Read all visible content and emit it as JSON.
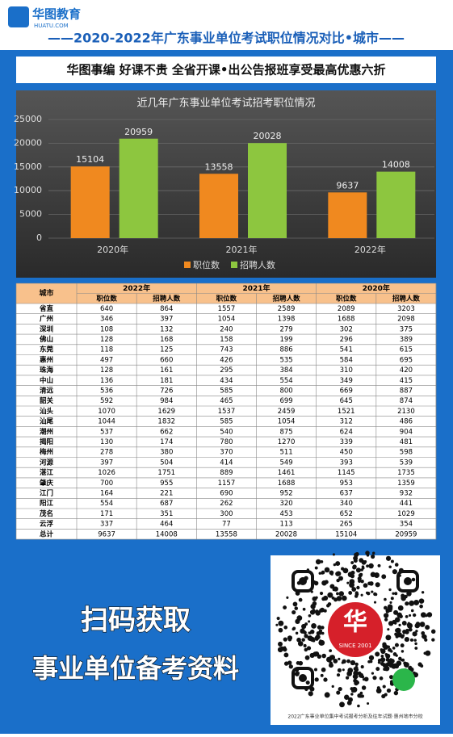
{
  "header": {
    "logo_text": "华图教育",
    "logo_sub": "HUATU.COM",
    "title": "——2020-2022年广东事业单位考试职位情况对比•城市——",
    "banner": "华图事编 好课不贵 全省开课•出公告报班享受最高优惠六折"
  },
  "chart_data": {
    "type": "bar",
    "title": "近几年广东事业单位考试招考职位情况",
    "categories": [
      "2020年",
      "2021年",
      "2022年"
    ],
    "series": [
      {
        "name": "职位数",
        "color": "#f0891f",
        "values": [
          15104,
          13558,
          9637
        ]
      },
      {
        "name": "招聘人数",
        "color": "#8dc63f",
        "values": [
          20959,
          20028,
          14008
        ]
      }
    ],
    "ylim": [
      0,
      25000
    ],
    "yticks": [
      0,
      5000,
      10000,
      15000,
      20000,
      25000
    ],
    "grid": true
  },
  "table": {
    "city_header": "城市",
    "years": [
      "2022年",
      "2021年",
      "2020年"
    ],
    "subheaders": [
      "职位数",
      "招聘人数"
    ],
    "rows": [
      [
        "省直",
        640,
        864,
        1557,
        2589,
        2089,
        3203
      ],
      [
        "广州",
        346,
        397,
        1054,
        1398,
        1688,
        2098
      ],
      [
        "深圳",
        108,
        132,
        240,
        279,
        302,
        375
      ],
      [
        "佛山",
        128,
        168,
        158,
        199,
        296,
        389
      ],
      [
        "东莞",
        118,
        125,
        743,
        886,
        541,
        615
      ],
      [
        "惠州",
        497,
        660,
        426,
        535,
        584,
        695
      ],
      [
        "珠海",
        128,
        161,
        295,
        384,
        310,
        420
      ],
      [
        "中山",
        136,
        181,
        434,
        554,
        349,
        415
      ],
      [
        "清远",
        536,
        726,
        585,
        800,
        669,
        887
      ],
      [
        "韶关",
        592,
        984,
        465,
        699,
        645,
        874
      ],
      [
        "汕头",
        1070,
        1629,
        1537,
        2459,
        1521,
        2130
      ],
      [
        "汕尾",
        1044,
        1832,
        585,
        1054,
        312,
        486
      ],
      [
        "潮州",
        537,
        662,
        540,
        875,
        624,
        904
      ],
      [
        "揭阳",
        130,
        174,
        780,
        1270,
        339,
        481
      ],
      [
        "梅州",
        278,
        380,
        370,
        511,
        450,
        598
      ],
      [
        "河源",
        397,
        504,
        414,
        549,
        393,
        539
      ],
      [
        "湛江",
        1026,
        1751,
        889,
        1461,
        1145,
        1735
      ],
      [
        "肇庆",
        700,
        955,
        1157,
        1688,
        953,
        1359
      ],
      [
        "江门",
        164,
        221,
        690,
        952,
        637,
        932
      ],
      [
        "阳江",
        554,
        687,
        262,
        320,
        340,
        441
      ],
      [
        "茂名",
        171,
        351,
        300,
        453,
        652,
        1029
      ],
      [
        "云浮",
        337,
        464,
        77,
        113,
        265,
        354
      ],
      [
        "总计",
        9637,
        14008,
        13558,
        20028,
        15104,
        20959
      ]
    ]
  },
  "footer": {
    "line1": "扫码获取",
    "line2": "事业单位备考资料",
    "qr_badge": "SINCE 2001",
    "qr_caption": "2022广东事业单位集中考试报考分析及往年试题·惠州地市分校"
  }
}
